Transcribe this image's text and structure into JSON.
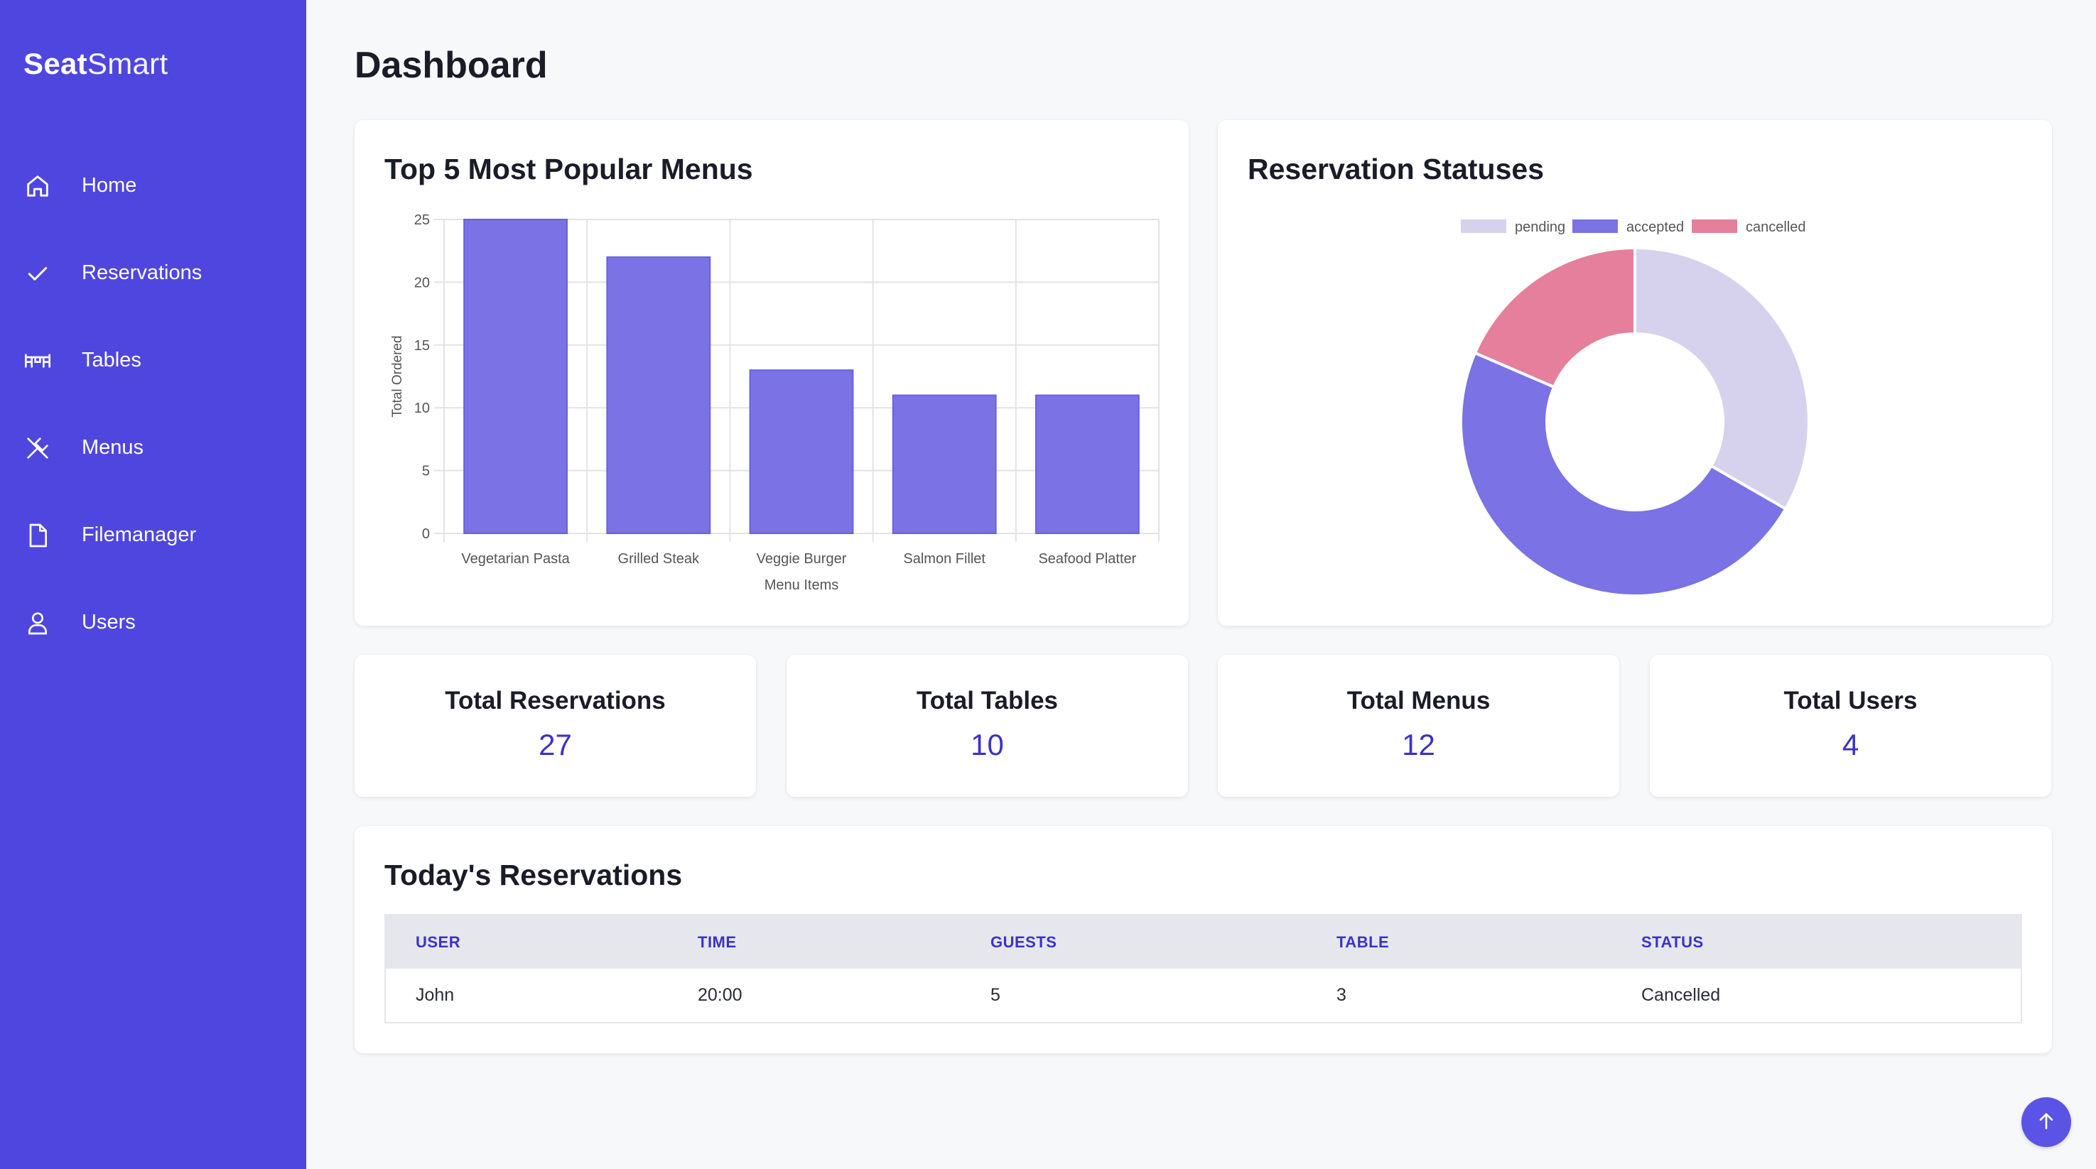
{
  "app": {
    "brand_strong": "Seat",
    "brand_light": "Smart",
    "accent_color": "#4f46e0"
  },
  "sidebar": {
    "items": [
      {
        "label": "Home",
        "icon": "home-icon"
      },
      {
        "label": "Reservations",
        "icon": "check-icon"
      },
      {
        "label": "Tables",
        "icon": "table-icon"
      },
      {
        "label": "Menus",
        "icon": "utensils-icon"
      },
      {
        "label": "Filemanager",
        "icon": "file-icon"
      },
      {
        "label": "Users",
        "icon": "user-icon"
      }
    ]
  },
  "page": {
    "title": "Dashboard"
  },
  "bar_card": {
    "title": "Top 5 Most Popular Menus"
  },
  "donut_card": {
    "title": "Reservation Statuses"
  },
  "chart_data": [
    {
      "type": "bar",
      "title": "Top 5 Most Popular Menus",
      "categories": [
        "Vegetarian Pasta",
        "Grilled Steak",
        "Veggie Burger",
        "Salmon Fillet",
        "Seafood Platter"
      ],
      "values": [
        25,
        22,
        13,
        11,
        11
      ],
      "xlabel": "Menu Items",
      "ylabel": "Total Ordered",
      "ylim": [
        0,
        25
      ],
      "yticks": [
        0,
        5,
        10,
        15,
        20,
        25
      ],
      "grid": true,
      "color": "#7a72e5"
    },
    {
      "type": "pie",
      "subtype": "doughnut",
      "title": "Reservation Statuses",
      "labels": [
        "pending",
        "accepted",
        "cancelled"
      ],
      "values": [
        9,
        13,
        5
      ],
      "colors": [
        "#d6d1ec",
        "#7a72e5",
        "#e57f9c"
      ],
      "legend": "top"
    }
  ],
  "stats": [
    {
      "label": "Total Reservations",
      "value": "27"
    },
    {
      "label": "Total Tables",
      "value": "10"
    },
    {
      "label": "Total Menus",
      "value": "12"
    },
    {
      "label": "Total Users",
      "value": "4"
    }
  ],
  "reservations_card": {
    "title": "Today's Reservations",
    "columns": [
      "USER",
      "TIME",
      "GUESTS",
      "TABLE",
      "STATUS"
    ],
    "rows": [
      [
        "John",
        "20:00",
        "5",
        "3",
        "Cancelled"
      ]
    ]
  }
}
